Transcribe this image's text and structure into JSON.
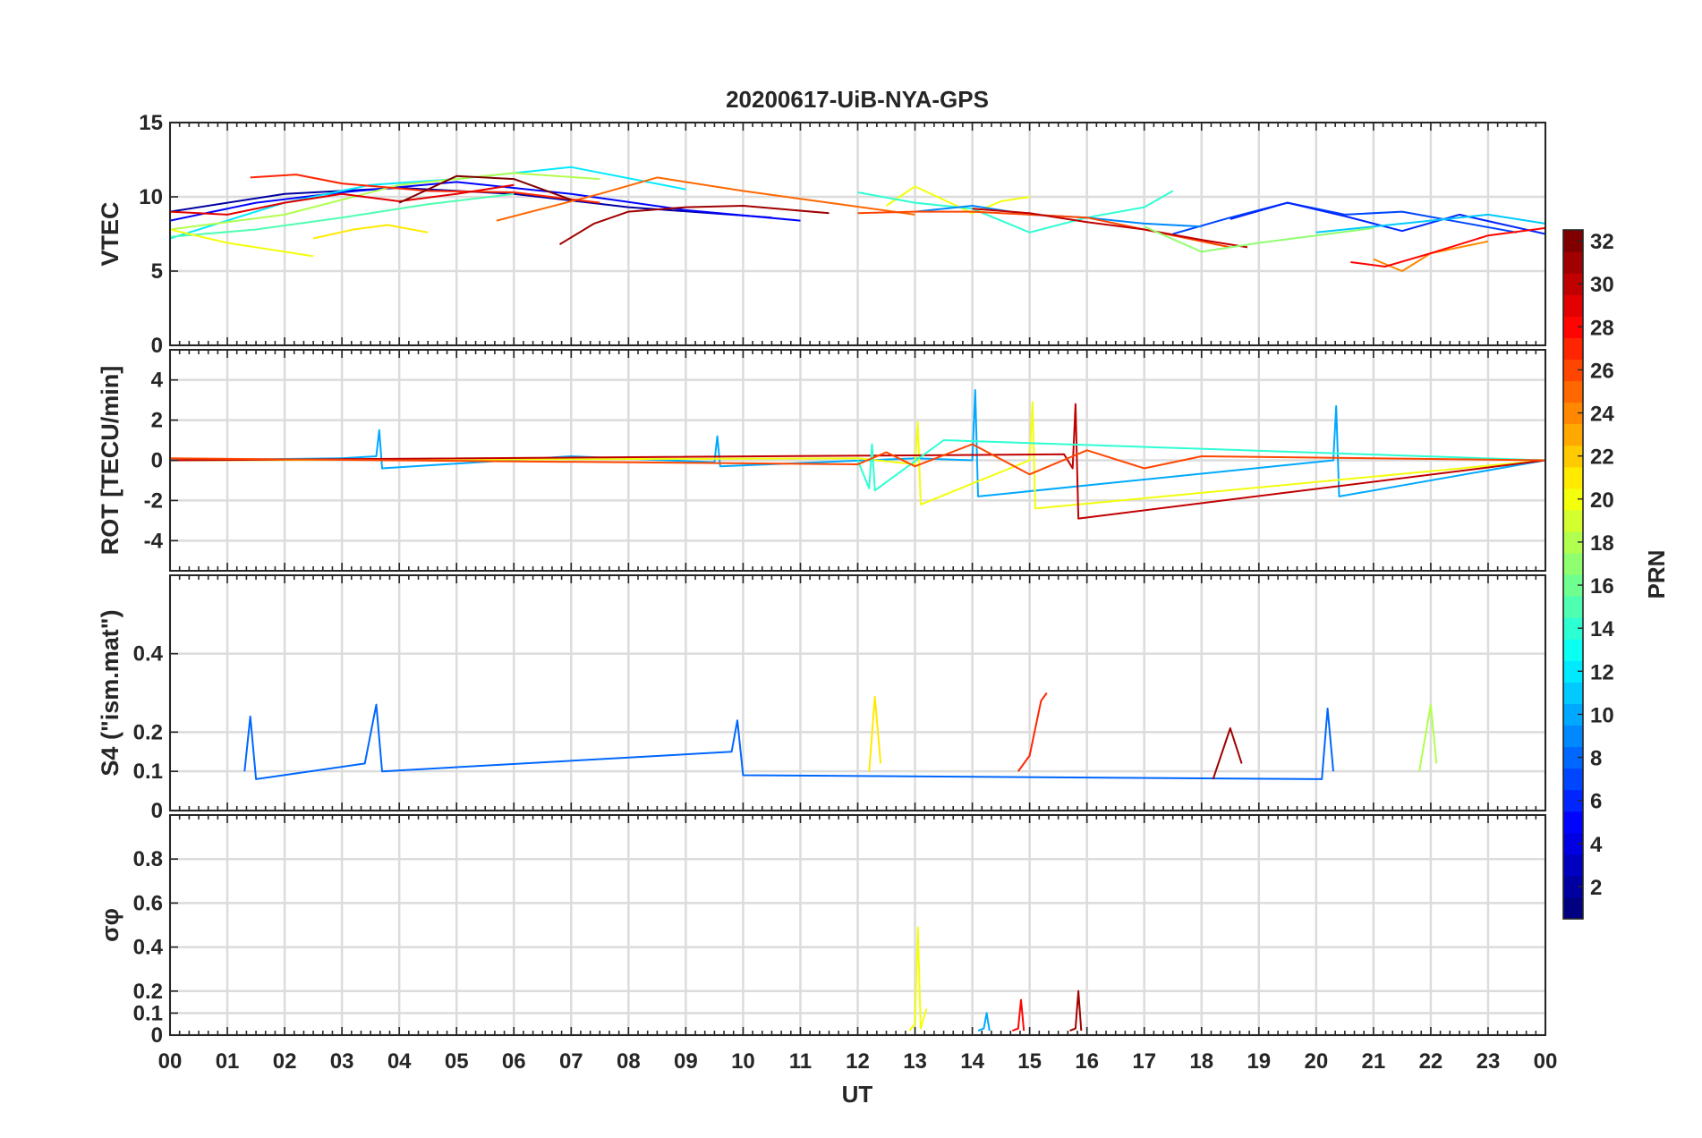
{
  "chart_data": {
    "type": "line",
    "title": "20200617-UiB-NYA-GPS",
    "xlabel": "UT",
    "x_tick_labels": [
      "00",
      "01",
      "02",
      "03",
      "04",
      "05",
      "06",
      "07",
      "08",
      "09",
      "10",
      "11",
      "12",
      "13",
      "14",
      "15",
      "16",
      "17",
      "18",
      "19",
      "20",
      "21",
      "22",
      "23",
      "00"
    ],
    "xlim": [
      0,
      24
    ],
    "colorbar": {
      "label": "PRN",
      "range": [
        1,
        32
      ],
      "tick_labels": [
        "2",
        "4",
        "6",
        "8",
        "10",
        "12",
        "14",
        "16",
        "18",
        "20",
        "22",
        "24",
        "26",
        "28",
        "30",
        "32"
      ],
      "colormap": "jet"
    },
    "panels": [
      {
        "name": "vtec",
        "ylabel": "VTEC",
        "ylim": [
          0,
          15
        ],
        "ytick_values": [
          0,
          5,
          10,
          15
        ],
        "ytick_labels": [
          "0",
          "5",
          "10",
          "15"
        ],
        "grid": true,
        "series": [
          {
            "prn": 2,
            "x": [
              0,
              2,
              4,
              6,
              8,
              10.5
            ],
            "y": [
              9,
              10.2,
              10.6,
              10.2,
              9.3,
              8.6
            ]
          },
          {
            "prn": 5,
            "x": [
              0,
              1.5,
              3,
              5,
              7,
              9,
              11
            ],
            "y": [
              8.4,
              9.6,
              10.3,
              11,
              10.2,
              9.1,
              8.4
            ]
          },
          {
            "prn": 7,
            "x": [
              17.5,
              18.5,
              19.5,
              20.5,
              21.5,
              22.5,
              23.5
            ],
            "y": [
              7.5,
              8.6,
              9.6,
              8.8,
              9,
              8.3,
              7.6
            ]
          },
          {
            "prn": 12,
            "x": [
              0,
              1,
              2,
              3.5,
              5,
              7,
              9
            ],
            "y": [
              7.2,
              8.4,
              9.6,
              10.8,
              11.2,
              12,
              10.5
            ]
          },
          {
            "prn": 15,
            "x": [
              0,
              1.5,
              3,
              4.5,
              6
            ],
            "y": [
              7.3,
              7.8,
              8.6,
              9.5,
              10.2
            ]
          },
          {
            "prn": 18,
            "x": [
              0,
              2,
              4,
              6,
              7.5
            ],
            "y": [
              7.8,
              8.8,
              10.8,
              11.6,
              11.2
            ]
          },
          {
            "prn": 20,
            "x": [
              0,
              1,
              2,
              2.5
            ],
            "y": [
              7.8,
              6.9,
              6.3,
              6.0
            ]
          },
          {
            "prn": 21,
            "x": [
              2.5,
              3.2,
              3.8,
              4.5
            ],
            "y": [
              7.2,
              7.8,
              8.1,
              7.6
            ]
          },
          {
            "prn": 25,
            "x": [
              5.7,
              6.5,
              7.5,
              8.5,
              10,
              11.5,
              13
            ],
            "y": [
              8.4,
              9.2,
              10.2,
              11.3,
              10.4,
              9.6,
              8.8
            ]
          },
          {
            "prn": 27,
            "x": [
              1.4,
              2.2,
              3,
              4.5,
              6,
              7.5
            ],
            "y": [
              11.3,
              11.5,
              10.9,
              10.4,
              10.3,
              9.6
            ]
          },
          {
            "prn": 29,
            "x": [
              0,
              1,
              2,
              3,
              4,
              5,
              6
            ],
            "y": [
              9,
              8.8,
              9.6,
              10.2,
              9.7,
              10.2,
              10.8
            ]
          },
          {
            "prn": 31,
            "x": [
              6.8,
              7.4,
              8,
              9,
              10,
              11.5
            ],
            "y": [
              6.8,
              8.2,
              9.0,
              9.3,
              9.4,
              8.9
            ]
          },
          {
            "prn": 32,
            "x": [
              4,
              5,
              6,
              7
            ],
            "y": [
              9.6,
              11.4,
              11.2,
              9.8
            ]
          },
          {
            "prn": 20,
            "x": [
              12.5,
              13,
              13.5,
              14,
              14.5,
              15
            ],
            "y": [
              9.4,
              10.7,
              9.8,
              8.9,
              9.7,
              10.0
            ]
          },
          {
            "prn": 14,
            "x": [
              12,
              13,
              14,
              15,
              16,
              17,
              17.5
            ],
            "y": [
              10.3,
              9.6,
              9.2,
              7.6,
              8.6,
              9.3,
              10.4
            ]
          },
          {
            "prn": 9,
            "x": [
              13,
              14,
              15,
              16,
              17,
              18
            ],
            "y": [
              9.0,
              9.4,
              8.8,
              8.6,
              8.2,
              8.0
            ]
          },
          {
            "prn": 26,
            "x": [
              12,
              13,
              14,
              15,
              16,
              17,
              18.5
            ],
            "y": [
              8.9,
              9.0,
              9.0,
              8.8,
              8.6,
              7.8,
              6.6
            ]
          },
          {
            "prn": 30,
            "x": [
              14,
              15,
              16,
              17,
              18,
              18.8
            ],
            "y": [
              9.2,
              8.9,
              8.3,
              7.8,
              7.1,
              6.6
            ]
          },
          {
            "prn": 6,
            "x": [
              18.5,
              19.5,
              20.5,
              21.5,
              22.5,
              24
            ],
            "y": [
              8.5,
              9.6,
              8.7,
              7.7,
              8.8,
              7.5
            ]
          },
          {
            "prn": 11,
            "x": [
              20,
              21,
              22,
              23,
              24
            ],
            "y": [
              7.6,
              8.0,
              8.4,
              8.8,
              8.2
            ]
          },
          {
            "prn": 24,
            "x": [
              21,
              21.5,
              22,
              23
            ],
            "y": [
              5.8,
              5.0,
              6.2,
              7.0
            ]
          },
          {
            "prn": 28,
            "x": [
              20.6,
              21.2,
              22,
              23,
              24
            ],
            "y": [
              5.6,
              5.3,
              6.2,
              7.4,
              7.9
            ]
          },
          {
            "prn": 17,
            "x": [
              17,
              18,
              19,
              20,
              21
            ],
            "y": [
              8.0,
              6.3,
              6.9,
              7.4,
              7.9
            ]
          }
        ]
      },
      {
        "name": "rot",
        "ylabel": "ROT [TECU/min]",
        "ylim": [
          -5.5,
          5.5
        ],
        "ytick_values": [
          -4,
          -2,
          0,
          2,
          4
        ],
        "ytick_labels": [
          "-4",
          "-2",
          "0",
          "2",
          "4"
        ],
        "grid": true,
        "series": [
          {
            "prn": 10,
            "x": [
              0,
              3,
              3.6,
              3.65,
              3.7,
              7,
              9.5,
              9.55,
              9.6,
              13,
              14,
              14.05,
              14.1,
              20.3,
              20.35,
              20.4,
              24
            ],
            "y": [
              0,
              0.1,
              0.2,
              1.5,
              -0.4,
              0.2,
              -0.1,
              1.2,
              -0.3,
              0.1,
              0,
              3.5,
              -1.8,
              0,
              2.7,
              -1.8,
              0
            ]
          },
          {
            "prn": 20,
            "x": [
              0,
              12,
              13,
              13.05,
              13.1,
              15,
              15.05,
              15.1,
              24
            ],
            "y": [
              0,
              0.1,
              -0.2,
              1.9,
              -2.2,
              0,
              2.9,
              -2.4,
              0
            ]
          },
          {
            "prn": 30,
            "x": [
              0,
              15.6,
              15.75,
              15.8,
              15.85,
              24
            ],
            "y": [
              0,
              0.3,
              -0.4,
              2.8,
              -2.9,
              0
            ]
          },
          {
            "prn": 14,
            "x": [
              12,
              12.2,
              12.25,
              12.3,
              13.5,
              24
            ],
            "y": [
              0,
              -1.4,
              0.8,
              -1.5,
              1.0,
              0
            ]
          },
          {
            "prn": 26,
            "x": [
              0,
              12,
              12.5,
              13,
              14,
              15,
              16,
              17,
              18,
              24
            ],
            "y": [
              0.1,
              -0.2,
              0.4,
              -0.3,
              0.8,
              -0.7,
              0.5,
              -0.4,
              0.2,
              0
            ]
          }
        ]
      },
      {
        "name": "s4",
        "ylabel": "S4 (\"ism.mat\")",
        "ylim": [
          0,
          0.6
        ],
        "ytick_values": [
          0,
          0.1,
          0.2,
          0.4
        ],
        "ytick_labels": [
          "0",
          "0.1",
          "0.2",
          "0.4"
        ],
        "grid": true,
        "series": [
          {
            "prn": 8,
            "x": [
              1.3,
              1.4,
              1.5,
              3.4,
              3.6,
              3.7,
              9.8,
              9.9,
              10,
              20.1,
              20.2,
              20.3
            ],
            "y": [
              0.1,
              0.24,
              0.08,
              0.12,
              0.27,
              0.1,
              0.15,
              0.23,
              0.09,
              0.08,
              0.26,
              0.1
            ]
          },
          {
            "prn": 21,
            "x": [
              12.2,
              12.3,
              12.4
            ],
            "y": [
              0.1,
              0.29,
              0.12
            ]
          },
          {
            "prn": 27,
            "x": [
              14.8,
              15,
              15.2,
              15.3
            ],
            "y": [
              0.1,
              0.14,
              0.28,
              0.3
            ]
          },
          {
            "prn": 18,
            "x": [
              21.8,
              22,
              22.1
            ],
            "y": [
              0.1,
              0.27,
              0.12
            ]
          },
          {
            "prn": 31,
            "x": [
              18.2,
              18.5,
              18.7
            ],
            "y": [
              0.08,
              0.21,
              0.12
            ]
          }
        ]
      },
      {
        "name": "sigma_phi",
        "ylabel": "σφ",
        "ylim": [
          0,
          1.0
        ],
        "ytick_values": [
          0,
          0.1,
          0.2,
          0.4,
          0.6,
          0.8
        ],
        "ytick_labels": [
          "0",
          "0.1",
          "0.2",
          "0.4",
          "0.6",
          "0.8"
        ],
        "grid": true,
        "series": [
          {
            "prn": 20,
            "x": [
              12.9,
              13.0,
              13.05,
              13.1,
              13.2
            ],
            "y": [
              0.02,
              0.05,
              0.49,
              0.03,
              0.12
            ]
          },
          {
            "prn": 28,
            "x": [
              14.7,
              14.8,
              14.85,
              14.9
            ],
            "y": [
              0.02,
              0.03,
              0.16,
              0.02
            ]
          },
          {
            "prn": 31,
            "x": [
              15.7,
              15.8,
              15.85,
              15.9
            ],
            "y": [
              0.02,
              0.03,
              0.2,
              0.02
            ]
          },
          {
            "prn": 10,
            "x": [
              14.1,
              14.2,
              14.25,
              14.3
            ],
            "y": [
              0.02,
              0.03,
              0.1,
              0.02
            ]
          }
        ]
      }
    ]
  }
}
